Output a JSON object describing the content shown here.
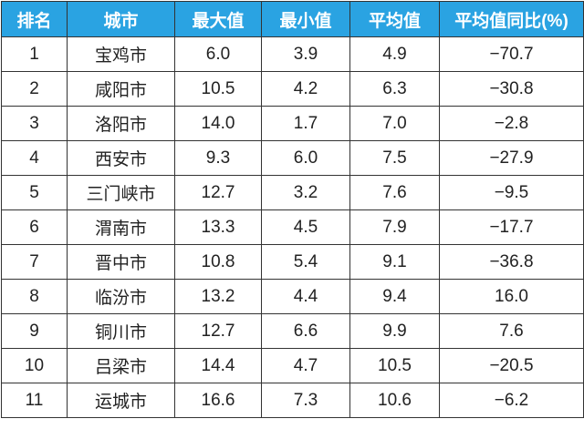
{
  "table": {
    "header": [
      "排名",
      "城市",
      "最大值",
      "最小值",
      "平均值",
      "平均值同比(%)"
    ],
    "rows": [
      [
        "1",
        "宝鸡市",
        "6.0",
        "3.9",
        "4.9",
        "−70.7"
      ],
      [
        "2",
        "咸阳市",
        "10.5",
        "4.2",
        "6.3",
        "−30.8"
      ],
      [
        "3",
        "洛阳市",
        "14.0",
        "1.7",
        "7.0",
        "−2.8"
      ],
      [
        "4",
        "西安市",
        "9.3",
        "6.0",
        "7.5",
        "−27.9"
      ],
      [
        "5",
        "三门峡市",
        "12.7",
        "3.2",
        "7.6",
        "−9.5"
      ],
      [
        "6",
        "渭南市",
        "13.3",
        "4.5",
        "7.9",
        "−17.7"
      ],
      [
        "7",
        "晋中市",
        "10.8",
        "5.4",
        "9.1",
        "−36.8"
      ],
      [
        "8",
        "临汾市",
        "13.2",
        "4.4",
        "9.4",
        "16.0"
      ],
      [
        "9",
        "铜川市",
        "12.7",
        "6.6",
        "9.9",
        "7.6"
      ],
      [
        "10",
        "吕梁市",
        "14.4",
        "4.7",
        "10.5",
        "−20.5"
      ],
      [
        "11",
        "运城市",
        "16.6",
        "7.3",
        "10.6",
        "−6.2"
      ]
    ]
  }
}
